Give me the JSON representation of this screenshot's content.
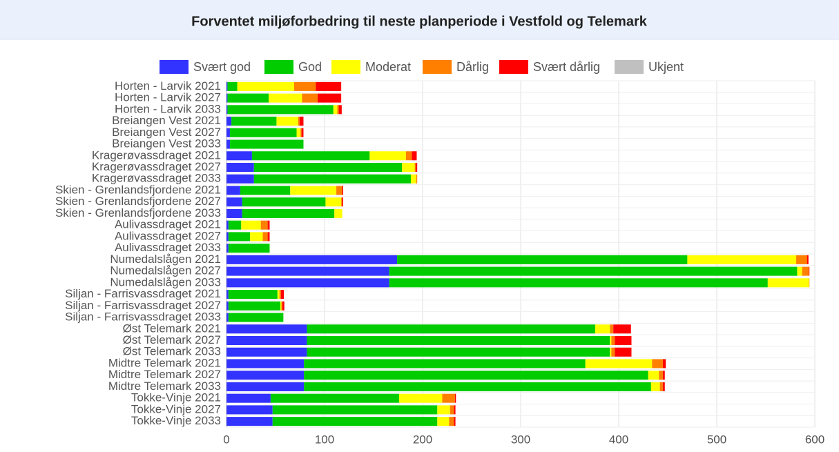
{
  "chart_data": {
    "type": "bar",
    "orientation": "horizontal",
    "stacked": true,
    "title": "Forventet miljøforbedring til neste planperiode i Vestfold og Telemark",
    "categories": [
      "Horten - Larvik 2021",
      "Horten - Larvik 2027",
      "Horten - Larvik 2033",
      "Breiangen Vest 2021",
      "Breiangen Vest 2027",
      "Breiangen Vest 2033",
      "Kragerøvassdraget 2021",
      "Kragerøvassdraget 2027",
      "Kragerøvassdraget 2033",
      "Skien - Grenlandsfjordene 2021",
      "Skien - Grenlandsfjordene 2027",
      "Skien - Grenlandsfjordene 2033",
      "Aulivassdraget 2021",
      "Aulivassdraget 2027",
      "Aulivassdraget 2033",
      "Numedalslågen 2021",
      "Numedalslågen 2027",
      "Numedalslågen 2033",
      "Siljan - Farrisvassdraget 2021",
      "Siljan - Farrisvassdraget 2027",
      "Siljan - Farrisvassdraget 2033",
      "Øst Telemark 2021",
      "Øst Telemark 2027",
      "Øst Telemark 2033",
      "Midtre Telemark 2021",
      "Midtre Telemark 2027",
      "Midtre Telemark 2033",
      "Tokke-Vinje 2021",
      "Tokke-Vinje 2027",
      "Tokke-Vinje 2033"
    ],
    "series": [
      {
        "name": "Svært god",
        "color": "#3333ff",
        "values": [
          1,
          1,
          1,
          5,
          3.5,
          3.5,
          26,
          28,
          28,
          14,
          16,
          16,
          2,
          2,
          2,
          174,
          166,
          166,
          2,
          2,
          2,
          82,
          82,
          82,
          79,
          79,
          79,
          45,
          47,
          47
        ]
      },
      {
        "name": "God",
        "color": "#00cc00",
        "values": [
          10,
          42,
          108,
          46,
          68,
          75,
          120,
          151,
          160,
          51,
          85,
          94,
          13,
          22,
          42,
          296,
          416,
          386,
          50,
          53,
          56,
          294,
          309,
          309,
          287,
          351,
          354,
          131,
          168,
          168
        ]
      },
      {
        "name": "Moderat",
        "color": "#ffff00",
        "values": [
          58,
          34,
          4,
          22,
          4,
          0,
          37,
          13,
          5.5,
          47,
          16,
          8,
          20,
          13,
          0,
          111,
          5,
          42,
          2,
          1,
          0,
          15,
          1.5,
          1.5,
          68,
          11,
          9,
          44,
          13,
          12
        ]
      },
      {
        "name": "Dårlig",
        "color": "#ff8000",
        "values": [
          22,
          16,
          1.5,
          1.5,
          1,
          0,
          6,
          1,
          1,
          6,
          1,
          0,
          7,
          5,
          0,
          11,
          7,
          0.5,
          1.5,
          1,
          0,
          3.5,
          3.5,
          3.5,
          11,
          4,
          3,
          13,
          4,
          5
        ]
      },
      {
        "name": "Svært dårlig",
        "color": "#ff0000",
        "values": [
          26,
          24,
          3,
          4,
          2,
          0,
          5,
          1.5,
          0,
          1,
          1,
          0,
          2,
          2,
          0,
          1.5,
          0.5,
          0,
          3,
          2,
          0,
          18,
          17,
          17,
          3,
          2,
          2,
          1,
          1.5,
          1.5
        ]
      },
      {
        "name": "Ukjent",
        "color": "#c0c0c0",
        "values": [
          0,
          0,
          0,
          0,
          0,
          0,
          0,
          0,
          0,
          0,
          0,
          0,
          0,
          0,
          0,
          0,
          0,
          0,
          0,
          0,
          0,
          0,
          0,
          0,
          0,
          0,
          0,
          0,
          0,
          0
        ]
      }
    ],
    "xlim": [
      0,
      600
    ],
    "xticks": [
      0,
      100,
      200,
      300,
      400,
      500,
      600
    ],
    "grid": true,
    "legend": "top"
  }
}
